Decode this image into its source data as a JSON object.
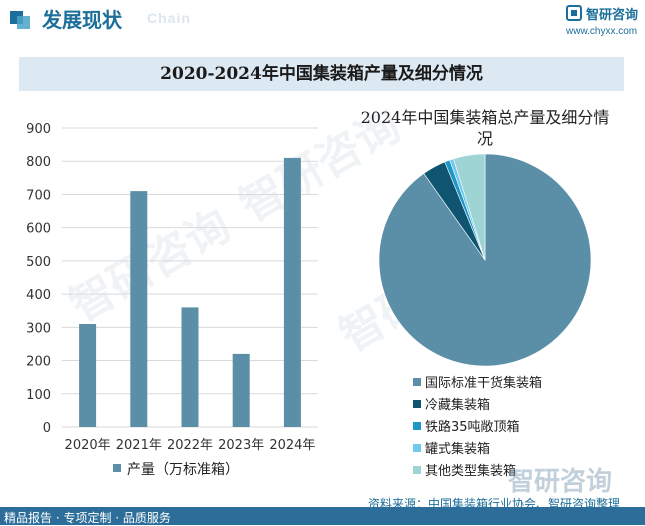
{
  "header": {
    "section_title": "发展现状",
    "section_subtitle": "Chain",
    "brand_name": "智研咨询",
    "brand_url": "www.chyxx.com"
  },
  "title": "2020-2024年中国集装箱产量及细分情况",
  "colors": {
    "bar": "#5b8fa8",
    "header_blue": "#1c6f9a",
    "title_band": "#dde9f2",
    "bottom_band": "#2c6e99"
  },
  "chart_data": [
    {
      "type": "bar",
      "categories": [
        "2020年",
        "2021年",
        "2022年",
        "2023年",
        "2024年"
      ],
      "series": [
        {
          "name": "产量（万标准箱）",
          "values": [
            310,
            710,
            360,
            220,
            810
          ]
        }
      ],
      "ylim": [
        0,
        900
      ],
      "yticks": [
        0,
        100,
        200,
        300,
        400,
        500,
        600,
        700,
        800,
        900
      ],
      "grid": true,
      "legend_position": "bottom"
    },
    {
      "type": "pie",
      "title": "2024年中国集装箱总产量及细分情况",
      "labels": [
        "国际标准干货集装箱",
        "冷藏集装箱",
        "铁路35吨敞顶箱",
        "罐式集装箱",
        "其他类型集装箱"
      ],
      "values": [
        90.2,
        3.6,
        0.8,
        0.6,
        4.8
      ],
      "colors": [
        "#5b8fa8",
        "#0f5470",
        "#1e96c8",
        "#71c9ec",
        "#9fd4d4"
      ],
      "legend_position": "bottom"
    }
  ],
  "footer": {
    "left": "精品报告 · 专项定制 · 品质服务",
    "source": "资料来源：中国集装箱行业协会、智研咨询整理",
    "watermark": "智研咨询"
  }
}
